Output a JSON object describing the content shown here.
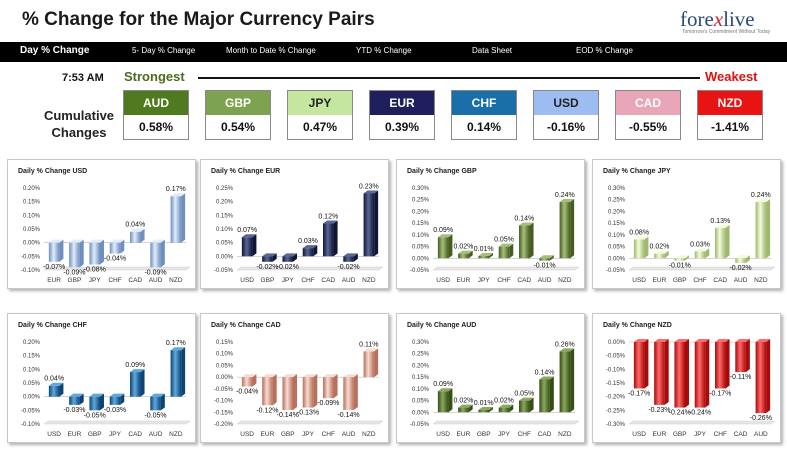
{
  "header": {
    "title": "% Change for the Major Currency Pairs",
    "logo_prefix": "fore",
    "logo_x": "x",
    "logo_suffix": "live",
    "logo_tagline": "Tomorrow's Commitment Without Today"
  },
  "nav": {
    "items": [
      "Day % Change",
      "5- Day % Change",
      "Month to Date % Change",
      "YTD % Change",
      "Data Sheet",
      "EOD % Change"
    ],
    "active": "Day % Change"
  },
  "summary": {
    "time": "7:53 AM",
    "strongest_label": "Strongest",
    "weakest_label": "Weakest",
    "cumulative_label": "Cumulative Changes",
    "currencies": [
      {
        "code": "AUD",
        "value": "0.58%",
        "bg": "#4f7a1f",
        "fg": "#ffffff"
      },
      {
        "code": "GBP",
        "value": "0.54%",
        "bg": "#7ea350",
        "fg": "#ffffff"
      },
      {
        "code": "JPY",
        "value": "0.47%",
        "bg": "#c4e6a0",
        "fg": "#222222"
      },
      {
        "code": "EUR",
        "value": "0.39%",
        "bg": "#1e1f5c",
        "fg": "#ffffff"
      },
      {
        "code": "CHF",
        "value": "0.14%",
        "bg": "#1a6fa8",
        "fg": "#ffffff"
      },
      {
        "code": "USD",
        "value": "-0.16%",
        "bg": "#9dbcf2",
        "fg": "#222222"
      },
      {
        "code": "CAD",
        "value": "-0.55%",
        "bg": "#e9a6b6",
        "fg": "#ffffff"
      },
      {
        "code": "NZD",
        "value": "-1.41%",
        "bg": "#e81414",
        "fg": "#ffffff"
      }
    ]
  },
  "chart_data": [
    {
      "type": "bar",
      "title": "Daily % Change USD",
      "categories": [
        "EUR",
        "GBP",
        "JPY",
        "CHF",
        "CAD",
        "AUD",
        "NZD"
      ],
      "values": [
        -0.07,
        -0.09,
        -0.08,
        -0.04,
        0.04,
        -0.09,
        0.17
      ],
      "labels": [
        "-0.07%",
        "-0.09%",
        "-0.08%",
        "-0.04%",
        "0.04%",
        "-0.09%",
        "0.17%"
      ],
      "ylim": [
        -0.1,
        0.2
      ],
      "yticks": [
        "0.20%",
        "0.15%",
        "0.10%",
        "0.05%",
        "0.00%",
        "-0.05%",
        "-0.10%"
      ],
      "colors": {
        "light": "#e2ecfa",
        "mid": "#a9c3e6",
        "dark": "#6e8fbf"
      }
    },
    {
      "type": "bar",
      "title": "Daily % Change EUR",
      "categories": [
        "USD",
        "GBP",
        "JPY",
        "CHF",
        "CAD",
        "AUD",
        "NZD"
      ],
      "values": [
        0.07,
        -0.02,
        -0.02,
        0.03,
        0.12,
        -0.02,
        0.23
      ],
      "labels": [
        "0.07%",
        "-0.02%",
        "-0.02%",
        "0.03%",
        "0.12%",
        "-0.02%",
        "0.23%"
      ],
      "ylim": [
        -0.05,
        0.25
      ],
      "yticks": [
        "0.25%",
        "0.20%",
        "0.15%",
        "0.10%",
        "0.05%",
        "0.00%",
        "-0.05%"
      ],
      "colors": {
        "light": "#5a6794",
        "mid": "#26335e",
        "dark": "#0e1638"
      }
    },
    {
      "type": "bar",
      "title": "Daily % Change GBP",
      "categories": [
        "USD",
        "EUR",
        "JPY",
        "CHF",
        "CAD",
        "AUD",
        "NZD"
      ],
      "values": [
        0.09,
        0.02,
        0.01,
        0.05,
        0.14,
        -0.01,
        0.24
      ],
      "labels": [
        "0.09%",
        "0.02%",
        "0.01%",
        "0.05%",
        "0.14%",
        "-0.01%",
        "0.24%"
      ],
      "ylim": [
        -0.05,
        0.3
      ],
      "yticks": [
        "0.30%",
        "0.25%",
        "0.20%",
        "0.15%",
        "0.10%",
        "0.05%",
        "0.00%",
        "-0.05%"
      ],
      "colors": {
        "light": "#a7bf7c",
        "mid": "#6f8c3f",
        "dark": "#455e20"
      }
    },
    {
      "type": "bar",
      "title": "Daily % Change JPY",
      "categories": [
        "USD",
        "EUR",
        "GBP",
        "CHF",
        "CAD",
        "AUD",
        "NZD"
      ],
      "values": [
        0.08,
        0.02,
        -0.01,
        0.03,
        0.13,
        -0.02,
        0.24
      ],
      "labels": [
        "0.08%",
        "0.02%",
        "-0.01%",
        "0.03%",
        "0.13%",
        "-0.02%",
        "0.24%"
      ],
      "ylim": [
        -0.05,
        0.3
      ],
      "yticks": [
        "0.30%",
        "0.25%",
        "0.20%",
        "0.15%",
        "0.10%",
        "0.05%",
        "0.00%",
        "-0.05%"
      ],
      "colors": {
        "light": "#f4fbdc",
        "mid": "#d2e8a8",
        "dark": "#9fb86f"
      }
    },
    {
      "type": "bar",
      "title": "Daily % Change CHF",
      "categories": [
        "USD",
        "EUR",
        "GBP",
        "JPY",
        "CAD",
        "AUD",
        "NZD"
      ],
      "values": [
        0.04,
        -0.03,
        -0.05,
        -0.03,
        0.09,
        -0.05,
        0.17
      ],
      "labels": [
        "0.04%",
        "-0.03%",
        "-0.05%",
        "-0.03%",
        "0.09%",
        "-0.05%",
        "0.17%"
      ],
      "ylim": [
        -0.1,
        0.2
      ],
      "yticks": [
        "0.20%",
        "0.15%",
        "0.10%",
        "0.05%",
        "0.00%",
        "-0.05%",
        "-0.10%"
      ],
      "colors": {
        "light": "#5fa8dd",
        "mid": "#1a6fb0",
        "dark": "#0c4574"
      }
    },
    {
      "type": "bar",
      "title": "Daily % Change CAD",
      "categories": [
        "USD",
        "EUR",
        "GBP",
        "JPY",
        "CHF",
        "AUD",
        "NZD"
      ],
      "values": [
        -0.04,
        -0.12,
        -0.14,
        -0.13,
        -0.09,
        -0.14,
        0.11
      ],
      "labels": [
        "-0.04%",
        "-0.12%",
        "-0.14%",
        "-0.13%",
        "-0.09%",
        "-0.14%",
        "0.11%"
      ],
      "ylim": [
        -0.2,
        0.15
      ],
      "yticks": [
        "0.15%",
        "0.10%",
        "0.05%",
        "0.00%",
        "-0.05%",
        "-0.10%",
        "-0.15%",
        "-0.20%"
      ],
      "colors": {
        "light": "#f7dcd2",
        "mid": "#e6a590",
        "dark": "#b86f5c"
      }
    },
    {
      "type": "bar",
      "title": "Daily % Change AUD",
      "categories": [
        "USD",
        "EUR",
        "GBP",
        "JPY",
        "CHF",
        "CAD",
        "NZD"
      ],
      "values": [
        0.09,
        0.02,
        0.01,
        0.02,
        0.05,
        0.14,
        0.26
      ],
      "labels": [
        "0.09%",
        "0.02%",
        "0.01%",
        "0.02%",
        "0.05%",
        "0.14%",
        "0.26%"
      ],
      "ylim": [
        -0.05,
        0.3
      ],
      "yticks": [
        "0.30%",
        "0.25%",
        "0.20%",
        "0.15%",
        "0.10%",
        "0.05%",
        "0.00%",
        "-0.05%"
      ],
      "colors": {
        "light": "#8aa860",
        "mid": "#5a7a2e",
        "dark": "#364f15"
      }
    },
    {
      "type": "bar",
      "title": "Daily % Change NZD",
      "categories": [
        "USD",
        "EUR",
        "GBP",
        "JPY",
        "CHF",
        "CAD",
        "AUD"
      ],
      "values": [
        -0.17,
        -0.23,
        -0.24,
        -0.24,
        -0.17,
        -0.11,
        -0.26
      ],
      "labels": [
        "-0.17%",
        "-0.23%",
        "-0.24%",
        "-0.24%",
        "-0.17%",
        "-0.11%",
        "-0.26%"
      ],
      "ylim": [
        -0.3,
        0.0
      ],
      "yticks": [
        "0.00%",
        "-0.05%",
        "-0.10%",
        "-0.15%",
        "-0.20%",
        "-0.25%",
        "-0.30%"
      ],
      "colors": {
        "light": "#ff6a6a",
        "mid": "#e81414",
        "dark": "#a80a0a"
      }
    }
  ]
}
